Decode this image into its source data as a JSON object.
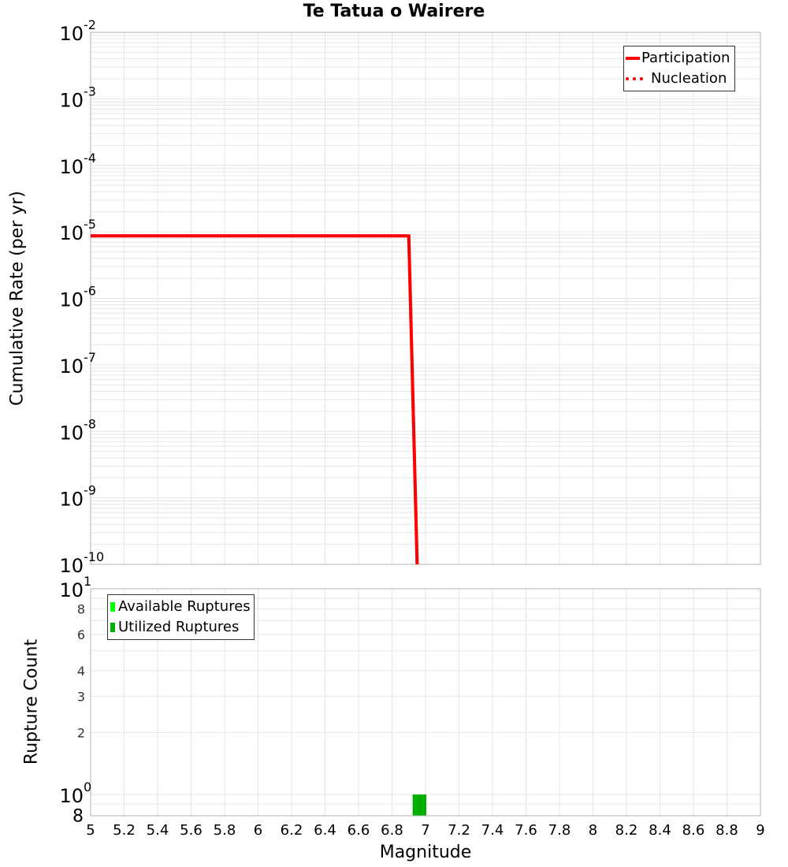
{
  "chart_data": [
    {
      "type": "line",
      "title": "Te Tatua o Wairere",
      "xlabel": "Magnitude",
      "ylabel": "Cumulative Rate (per yr)",
      "yscale": "log",
      "xlim": [
        5,
        9
      ],
      "ylim": [
        1e-10,
        0.01
      ],
      "y_tick_labels": [
        "10^-2",
        "10^-3",
        "10^-4",
        "10^-5",
        "10^-6",
        "10^-7",
        "10^-8",
        "10^-9",
        "10^-10"
      ],
      "grid": true,
      "legend_position": "upper right",
      "series": [
        {
          "name": "Participation",
          "style": "solid",
          "color": "#ff0000",
          "x": [
            5.0,
            6.9,
            6.95
          ],
          "y": [
            8.7e-06,
            8.7e-06,
            1e-10
          ]
        },
        {
          "name": "Nucleation",
          "style": "dotted",
          "color": "#ff0000",
          "x": [
            5.0,
            6.9,
            6.95
          ],
          "y": [
            8.7e-06,
            8.7e-06,
            1e-10
          ]
        }
      ]
    },
    {
      "type": "bar",
      "xlabel": "Magnitude",
      "ylabel": "Rupture Count",
      "yscale": "log",
      "xlim": [
        5,
        9
      ],
      "ylim": [
        0.8,
        10
      ],
      "x_tick_labels": [
        "5",
        "5.2",
        "5.4",
        "5.6",
        "5.8",
        "6",
        "6.2",
        "6.4",
        "6.6",
        "6.8",
        "7",
        "7.2",
        "7.4",
        "7.6",
        "7.8",
        "8",
        "8.2",
        "8.4",
        "8.6",
        "8.8",
        "9"
      ],
      "y_tick_labels": [
        "10^1",
        "8",
        "6",
        "4",
        "3",
        "2",
        "10^0",
        "8"
      ],
      "grid": true,
      "legend_position": "upper left",
      "series": [
        {
          "name": "Available Ruptures",
          "color": "#00ff00",
          "bins": [
            [
              6.9,
              7.0
            ]
          ],
          "values": [
            1
          ]
        },
        {
          "name": "Utilized Ruptures",
          "color": "#00b000",
          "bins": [
            [
              6.9,
              7.0
            ]
          ],
          "values": [
            1
          ]
        }
      ]
    }
  ],
  "labels": {
    "title": "Te Tatua o Wairere",
    "top_ylabel": "Cumulative Rate (per yr)",
    "bottom_ylabel": "Rupture Count",
    "xlabel": "Magnitude",
    "legend_top": [
      "Participation",
      "Nucleation"
    ],
    "legend_bottom": [
      "Available Ruptures",
      "Utilized Ruptures"
    ]
  },
  "colors": {
    "rate_line": "#ff0000",
    "available": "#00ff00",
    "utilized": "#00b000",
    "grid": "#e6e6e6",
    "axis": "#b0b0b0"
  }
}
